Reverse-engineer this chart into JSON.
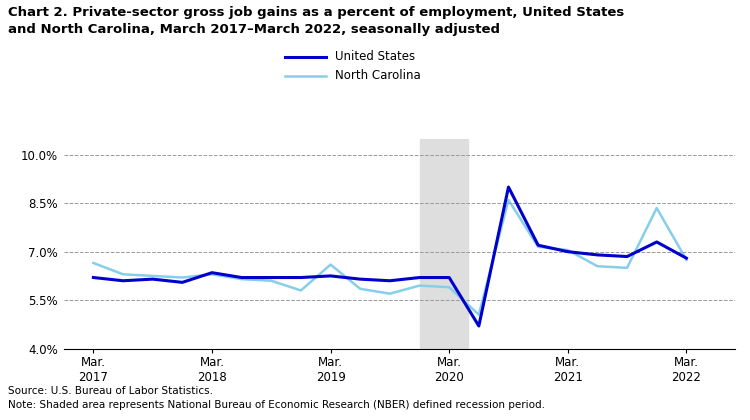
{
  "title_line1": "Chart 2. Private-sector gross job gains as a percent of employment, United States",
  "title_line2": "and North Carolina, March 2017–March 2022, seasonally adjusted",
  "source_note": "Source: U.S. Bureau of Labor Statistics.\nNote: Shaded area represents National Bureau of Economic Research (NBER) defined recession period.",
  "legend": [
    "United States",
    "North Carolina"
  ],
  "us_color": "#0000CD",
  "nc_color": "#87CEEB",
  "recession_color": "#DEDEDE",
  "recession_start": 2019.92,
  "recession_end": 2020.33,
  "ylim": [
    4.0,
    10.5
  ],
  "yticks": [
    4.0,
    5.5,
    7.0,
    8.5,
    10.0
  ],
  "ytick_labels": [
    "4.0%",
    "5.5%",
    "7.0%",
    "8.5%",
    "10.0%"
  ],
  "xlim_left": 2016.92,
  "xlim_right": 2022.58,
  "xtick_positions": [
    2017.17,
    2018.17,
    2019.17,
    2020.17,
    2021.17,
    2022.17
  ],
  "xtick_labels": [
    "Mar.\n2017",
    "Mar.\n2018",
    "Mar.\n2019",
    "Mar.\n2020",
    "Mar.\n2021",
    "Mar.\n2022"
  ],
  "us_data_x": [
    2017.17,
    2017.42,
    2017.67,
    2017.92,
    2018.17,
    2018.42,
    2018.67,
    2018.92,
    2019.17,
    2019.42,
    2019.67,
    2019.92,
    2020.17,
    2020.42,
    2020.67,
    2020.92,
    2021.17,
    2021.42,
    2021.67,
    2021.92,
    2022.17
  ],
  "us_data_y": [
    6.2,
    6.1,
    6.15,
    6.05,
    6.35,
    6.2,
    6.2,
    6.2,
    6.25,
    6.15,
    6.1,
    6.2,
    6.2,
    4.7,
    9.0,
    7.2,
    7.0,
    6.9,
    6.85,
    7.3,
    6.8
  ],
  "nc_data_x": [
    2017.17,
    2017.42,
    2017.67,
    2017.92,
    2018.17,
    2018.42,
    2018.67,
    2018.92,
    2019.17,
    2019.42,
    2019.67,
    2019.92,
    2020.17,
    2020.42,
    2020.67,
    2020.92,
    2021.17,
    2021.42,
    2021.67,
    2021.92,
    2022.17
  ],
  "nc_data_y": [
    6.65,
    6.3,
    6.25,
    6.2,
    6.3,
    6.15,
    6.1,
    5.8,
    6.6,
    5.85,
    5.7,
    5.95,
    5.9,
    5.05,
    8.6,
    7.15,
    7.05,
    6.55,
    6.5,
    8.35,
    6.75
  ]
}
